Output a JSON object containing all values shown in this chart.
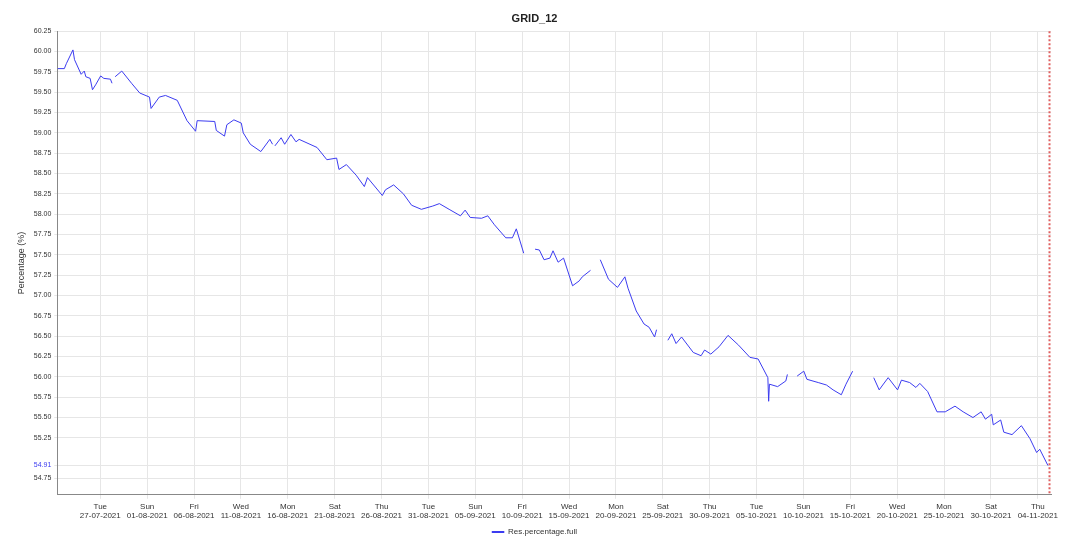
{
  "chart_data": {
    "type": "line",
    "title": "GRID_12",
    "ylabel": "Percentage (%)",
    "x": [
      "2021-07-22T11:00",
      "2021-07-23T04:00",
      "2021-07-23T09:00",
      "2021-07-24T02:00",
      "2021-07-24T06:00",
      "2021-07-24T23:00",
      "2021-07-25T07:00",
      "2021-07-25T11:00",
      "2021-07-25T22:00",
      "2021-07-26T04:00",
      "2021-07-26T12:00",
      "2021-07-27T01:00",
      "2021-07-27T09:00",
      "2021-07-28T02:00",
      "2021-07-28T06:00",
      "2021-07-28T10:00",
      "2021-07-28T14:00",
      "2021-07-29T07:00",
      "2021-07-30T08:00",
      "2021-07-31T05:00",
      "2021-08-01T06:00",
      "2021-08-01T10:00",
      "2021-08-02T07:00",
      "2021-08-02T23:00",
      "2021-08-04T05:00",
      "2021-08-05T06:00",
      "2021-08-06T04:00",
      "2021-08-06T08:00",
      "2021-08-08T05:00",
      "2021-08-08T09:00",
      "2021-08-09T06:00",
      "2021-08-09T12:00",
      "2021-08-10T06:00",
      "2021-08-11T01:00",
      "2021-08-11T06:00",
      "2021-08-12T00:00",
      "2021-08-13T03:00",
      "2021-08-14T02:00",
      "2021-08-14T09:00",
      "2021-08-14T12:00",
      "2021-08-14T15:00",
      "2021-08-15T07:00",
      "2021-08-15T16:00",
      "2021-08-16T08:00",
      "2021-08-16T21:00",
      "2021-08-17T05:00",
      "2021-08-19T03:00",
      "2021-08-20T04:00",
      "2021-08-21T05:00",
      "2021-08-21T11:00",
      "2021-08-22T06:00",
      "2021-08-23T07:00",
      "2021-08-24T04:00",
      "2021-08-24T12:00",
      "2021-08-26T02:00",
      "2021-08-26T10:00",
      "2021-08-27T07:00",
      "2021-08-28T08:00",
      "2021-08-29T05:00",
      "2021-08-30T06:00",
      "2021-08-31T11:00",
      "2021-09-01T04:00",
      "2021-09-02T05:00",
      "2021-09-03T10:00",
      "2021-09-03T22:00",
      "2021-09-04T11:00",
      "2021-09-05T16:00",
      "2021-09-06T08:00",
      "2021-09-07T01:00",
      "2021-09-08T06:00",
      "2021-09-08T23:00",
      "2021-09-09T09:00",
      "2021-09-10T04:00",
      "2021-09-10T18:00",
      "2021-09-11T09:00",
      "2021-09-11T20:00",
      "2021-09-12T08:00",
      "2021-09-12T23:00",
      "2021-09-13T07:00",
      "2021-09-13T20:00",
      "2021-09-14T10:00",
      "2021-09-15T09:00",
      "2021-09-16T02:00",
      "2021-09-16T10:00",
      "2021-09-17T07:00",
      "2021-09-17T20:00",
      "2021-09-18T08:00",
      "2021-09-19T05:00",
      "2021-09-20T04:00",
      "2021-09-20T23:00",
      "2021-09-21T07:00",
      "2021-09-22T04:00",
      "2021-09-23T00:00",
      "2021-09-23T13:00",
      "2021-09-24T03:00",
      "2021-09-24T08:00",
      "2021-09-24T20:00",
      "2021-09-25T13:00",
      "2021-09-25T23:00",
      "2021-09-26T10:00",
      "2021-09-27T00:00",
      "2021-09-28T06:00",
      "2021-09-29T02:00",
      "2021-09-29T11:00",
      "2021-09-30T03:00",
      "2021-10-01T00:00",
      "2021-10-01T23:00",
      "2021-10-03T02:00",
      "2021-10-04T07:00",
      "2021-10-05T04:00",
      "2021-10-06T05:00",
      "2021-10-06T07:00",
      "2021-10-06T09:00",
      "2021-10-07T06:00",
      "2021-10-08T03:00",
      "2021-10-08T07:00",
      "2021-10-08T20:00",
      "2021-10-09T08:00",
      "2021-10-10T01:00",
      "2021-10-10T09:00",
      "2021-10-11T14:00",
      "2021-10-12T11:00",
      "2021-10-13T04:00",
      "2021-10-14T01:00",
      "2021-10-14T13:00",
      "2021-10-15T06:00",
      "2021-10-16T12:00",
      "2021-10-17T12:00",
      "2021-10-18T02:00",
      "2021-10-18T11:00",
      "2021-10-19T01:00",
      "2021-10-20T01:00",
      "2021-10-20T11:00",
      "2021-10-21T08:00",
      "2021-10-22T00:00",
      "2021-10-22T10:00",
      "2021-10-23T06:00",
      "2021-10-24T06:00",
      "2021-10-25T03:00",
      "2021-10-26T04:00",
      "2021-10-27T01:00",
      "2021-10-28T02:00",
      "2021-10-28T23:00",
      "2021-10-29T10:00",
      "2021-10-30T02:00",
      "2021-10-30T06:00",
      "2021-10-31T01:00",
      "2021-10-31T09:00",
      "2021-11-01T06:00",
      "2021-11-02T06:00",
      "2021-11-03T04:00",
      "2021-11-03T21:00",
      "2021-11-04T05:00",
      "2021-11-05T02:00"
    ],
    "series": [
      {
        "name": "Res.percentage.full",
        "color": "#3c3cf0",
        "values": [
          59.79,
          59.79,
          59.85,
          60.02,
          59.9,
          59.72,
          59.76,
          59.69,
          59.67,
          59.53,
          59.59,
          59.7,
          59.67,
          59.66,
          59.61,
          null,
          59.69,
          59.76,
          59.61,
          59.49,
          59.44,
          59.3,
          59.44,
          59.46,
          59.4,
          59.15,
          59.02,
          59.15,
          59.14,
          59.03,
          58.96,
          59.1,
          59.16,
          59.12,
          59.0,
          58.86,
          58.77,
          58.92,
          58.86,
          null,
          58.84,
          58.94,
          58.86,
          58.98,
          58.89,
          58.92,
          58.82,
          58.67,
          58.69,
          58.55,
          58.61,
          58.48,
          58.34,
          58.45,
          58.23,
          58.3,
          58.36,
          58.25,
          58.11,
          58.06,
          58.1,
          58.13,
          58.06,
          57.98,
          58.05,
          57.96,
          57.95,
          57.98,
          57.87,
          57.71,
          57.71,
          57.82,
          57.52,
          null,
          57.57,
          57.56,
          57.44,
          57.46,
          57.55,
          57.41,
          57.46,
          57.12,
          57.18,
          57.23,
          57.31,
          null,
          57.44,
          57.2,
          57.1,
          57.23,
          57.09,
          56.81,
          56.65,
          56.61,
          56.49,
          56.58,
          null,
          56.45,
          56.53,
          56.41,
          56.49,
          56.3,
          56.26,
          56.33,
          56.28,
          56.37,
          56.51,
          56.39,
          56.24,
          56.22,
          55.99,
          55.7,
          55.91,
          55.88,
          55.95,
          56.03,
          null,
          56.01,
          56.07,
          55.97,
          55.93,
          55.9,
          55.84,
          55.78,
          55.91,
          56.07,
          null,
          55.99,
          55.84,
          55.9,
          55.99,
          55.84,
          55.96,
          55.93,
          55.87,
          55.92,
          55.82,
          55.57,
          55.57,
          55.64,
          55.57,
          55.5,
          55.57,
          55.48,
          55.54,
          55.41,
          55.47,
          55.32,
          55.29,
          55.4,
          55.24,
          55.07,
          55.11,
          54.91
        ]
      }
    ],
    "xlim": [
      "2021-07-22T10:00",
      "2021-11-05T10:00"
    ],
    "xticks": [
      {
        "value": "2021-07-27",
        "label": "Tue\n27-07-2021"
      },
      {
        "value": "2021-08-01",
        "label": "Sun\n01-08-2021"
      },
      {
        "value": "2021-08-06",
        "label": "Fri\n06-08-2021"
      },
      {
        "value": "2021-08-11",
        "label": "Wed\n11-08-2021"
      },
      {
        "value": "2021-08-16",
        "label": "Mon\n16-08-2021"
      },
      {
        "value": "2021-08-21",
        "label": "Sat\n21-08-2021"
      },
      {
        "value": "2021-08-26",
        "label": "Thu\n26-08-2021"
      },
      {
        "value": "2021-08-31",
        "label": "Tue\n31-08-2021"
      },
      {
        "value": "2021-09-05",
        "label": "Sun\n05-09-2021"
      },
      {
        "value": "2021-09-10",
        "label": "Fri\n10-09-2021"
      },
      {
        "value": "2021-09-15",
        "label": "Wed\n15-09-2021"
      },
      {
        "value": "2021-09-20",
        "label": "Mon\n20-09-2021"
      },
      {
        "value": "2021-09-25",
        "label": "Sat\n25-09-2021"
      },
      {
        "value": "2021-09-30",
        "label": "Thu\n30-09-2021"
      },
      {
        "value": "2021-10-05",
        "label": "Tue\n05-10-2021"
      },
      {
        "value": "2021-10-10",
        "label": "Sun\n10-10-2021"
      },
      {
        "value": "2021-10-15",
        "label": "Fri\n15-10-2021"
      },
      {
        "value": "2021-10-20",
        "label": "Wed\n20-10-2021"
      },
      {
        "value": "2021-10-25",
        "label": "Mon\n25-10-2021"
      },
      {
        "value": "2021-10-30",
        "label": "Sat\n30-10-2021"
      },
      {
        "value": "2021-11-04",
        "label": "Thu\n04-11-2021"
      }
    ],
    "ylim": [
      54.55,
      60.25
    ],
    "yticks": [
      {
        "value": 54.75,
        "label": "54.75"
      },
      {
        "value": 54.91,
        "label": "54.91"
      },
      {
        "value": 55.25,
        "label": "55.25"
      },
      {
        "value": 55.5,
        "label": "55.50"
      },
      {
        "value": 55.75,
        "label": "55.75"
      },
      {
        "value": 56,
        "label": "56.00"
      },
      {
        "value": 56.25,
        "label": "56.25"
      },
      {
        "value": 56.5,
        "label": "56.50"
      },
      {
        "value": 56.75,
        "label": "56.75"
      },
      {
        "value": 57,
        "label": "57.00"
      },
      {
        "value": 57.25,
        "label": "57.25"
      },
      {
        "value": 57.5,
        "label": "57.50"
      },
      {
        "value": 57.75,
        "label": "57.75"
      },
      {
        "value": 58,
        "label": "58.00"
      },
      {
        "value": 58.25,
        "label": "58.25"
      },
      {
        "value": 58.5,
        "label": "58.50"
      },
      {
        "value": 58.75,
        "label": "58.75"
      },
      {
        "value": 59,
        "label": "59.00"
      },
      {
        "value": 59.25,
        "label": "59.25"
      },
      {
        "value": 59.5,
        "label": "59.50"
      },
      {
        "value": 59.75,
        "label": "59.75"
      },
      {
        "value": 60,
        "label": "60.00"
      },
      {
        "value": 60.25,
        "label": "60.25"
      }
    ],
    "ref_lines": [
      {
        "axis": "x",
        "value": "2021-11-05T06:00",
        "color": "#e06060",
        "line_style": "dotted"
      }
    ],
    "grid": true,
    "legend": "bottom"
  }
}
